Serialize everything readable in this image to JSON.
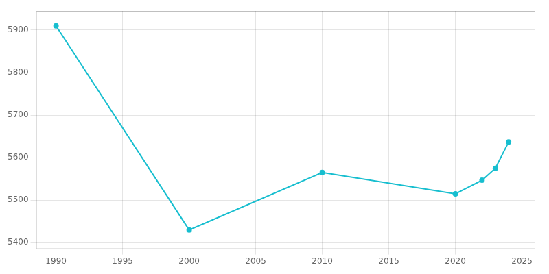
{
  "chart_data": {
    "type": "line",
    "x": [
      1990,
      2000,
      2010,
      2020,
      2022,
      2023,
      2024
    ],
    "values": [
      5910,
      5430,
      5565,
      5515,
      5547,
      5575,
      5637
    ],
    "color": "#17becf",
    "marker": "circle",
    "xlim": [
      1988.5,
      2026
    ],
    "ylim": [
      5385,
      5945
    ],
    "xticks": [
      1990,
      1995,
      2000,
      2005,
      2010,
      2015,
      2020,
      2025
    ],
    "yticks": [
      5400,
      5500,
      5600,
      5700,
      5800,
      5900
    ],
    "grid": true
  }
}
